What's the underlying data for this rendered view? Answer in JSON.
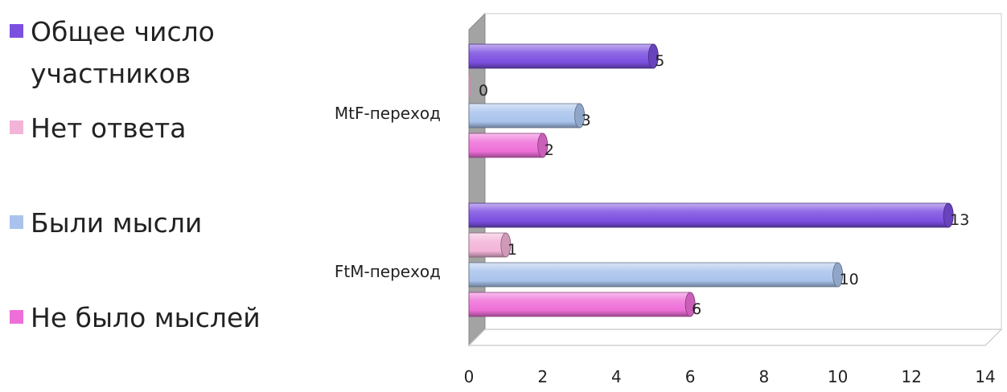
{
  "chart_data": {
    "type": "bar",
    "orientation": "horizontal",
    "style": "3d-cylinder",
    "categories": [
      "FtM-переход",
      "MtF-переход"
    ],
    "series": [
      {
        "name": "Общее число участников",
        "color": "#7b4fe0",
        "values": [
          13,
          5
        ]
      },
      {
        "name": "Нет ответа",
        "color": "#f3b4d8",
        "values": [
          1,
          0
        ]
      },
      {
        "name": "Были мысли",
        "color": "#a9c3ec",
        "values": [
          10,
          3
        ]
      },
      {
        "name": "Не было мыслей",
        "color": "#ee6fd8",
        "values": [
          6,
          2
        ]
      }
    ],
    "xlim": [
      0,
      14
    ],
    "xticks": [
      "0",
      "2",
      "4",
      "6",
      "8",
      "10",
      "12",
      "14"
    ],
    "title": "",
    "xlabel": "",
    "ylabel": "",
    "legend": "left",
    "grid": false
  }
}
